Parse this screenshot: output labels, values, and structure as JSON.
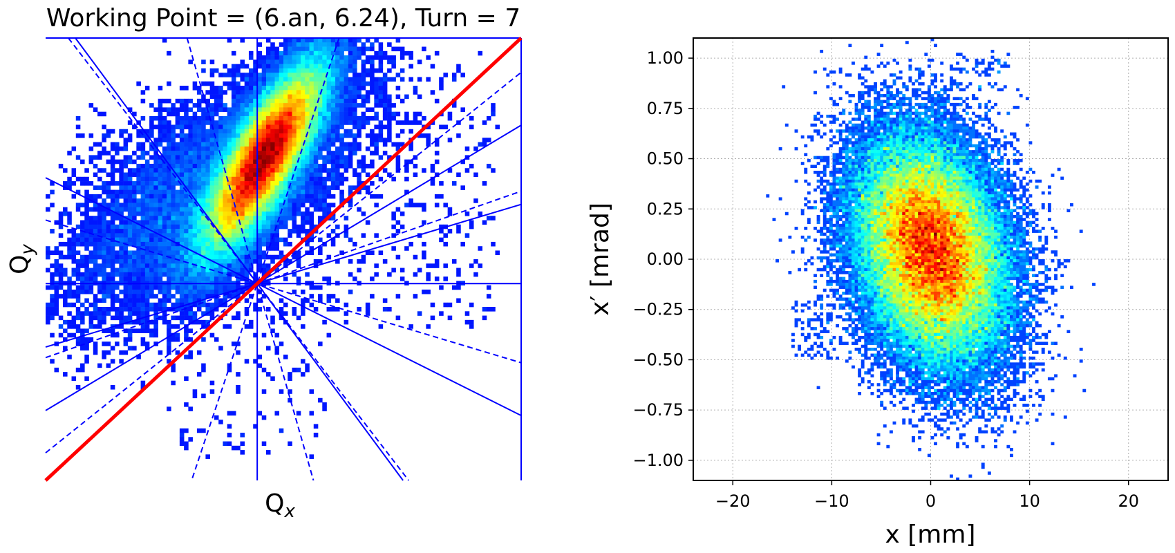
{
  "chart_data": [
    {
      "type": "heatmap",
      "title": "Working Point = (6.an, 6.24), Turn = 7",
      "xlabel": "Q",
      "xlabel_sub": "x",
      "ylabel": "Q",
      "ylabel_sub": "y",
      "colormap": "jet",
      "axes_visible": false,
      "working_point_fraction": [
        0.445,
        0.445
      ],
      "diagonal_line": {
        "color": "#ff0000",
        "from": [
          0,
          0
        ],
        "to": [
          1,
          1
        ]
      },
      "resonance_lines": {
        "color": "#0000ff",
        "solid_slopes": [
          0.3,
          0.6,
          -0.5,
          -1.35
        ],
        "dashed_slopes": [
          0.35,
          0.8,
          3.0,
          -0.3,
          -1.3,
          -3.5
        ],
        "horizontal_through_working_point": true,
        "vertical_through_working_point": true
      },
      "density_core": {
        "center": [
          0.46,
          0.73
        ],
        "note_orientation_deg": 62
      }
    },
    {
      "type": "heatmap",
      "colormap": "jet",
      "xlabel": "x [mm]",
      "ylabel": "x′ [mrad]",
      "xlim": [
        -24,
        24
      ],
      "ylim": [
        -1.1,
        1.1
      ],
      "xticks": [
        -20,
        -10,
        0,
        10,
        20
      ],
      "xtick_labels": [
        "−20",
        "−10",
        "0",
        "10",
        "20"
      ],
      "yticks": [
        1.0,
        0.75,
        0.5,
        0.25,
        0.0,
        -0.25,
        -0.5,
        -0.75,
        -1.0
      ],
      "ytick_labels": [
        "1.00",
        "0.75",
        "0.50",
        "0.25",
        "0.00",
        "−0.25",
        "−0.50",
        "−0.75",
        "−1.00"
      ],
      "grid": true,
      "distribution_center": [
        0.0,
        0.05
      ],
      "distribution_spread": [
        4.0,
        0.28
      ]
    }
  ]
}
